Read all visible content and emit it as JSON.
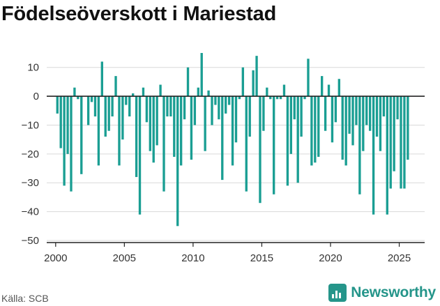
{
  "header": {
    "title": "Födelseöverskott i Mariestad"
  },
  "footer": {
    "source": "Källa: SCB",
    "brand_name": "Newsworthy"
  },
  "colors": {
    "bar": "#1a9e93",
    "zero_line": "#222222",
    "grid": "#d9d9d9",
    "brand": "#25958a"
  },
  "icons": {
    "brand_logo": "bar-chart-icon"
  },
  "chart_data": {
    "type": "bar",
    "title": "Födelseöverskott i Mariestad",
    "xlabel": "",
    "ylabel": "",
    "ylim": [
      -50,
      15
    ],
    "xlim": [
      1999.35,
      2026.85
    ],
    "y_ticks": [
      10,
      0,
      -10,
      -20,
      -30,
      -40,
      -50
    ],
    "x_ticks": [
      2000,
      2005,
      2010,
      2015,
      2020,
      2025
    ],
    "grid": true,
    "legend": "none",
    "frequency": "quarterly",
    "x": [
      2000.125,
      2000.375,
      2000.625,
      2000.875,
      2001.125,
      2001.375,
      2001.625,
      2001.875,
      2002.125,
      2002.375,
      2002.625,
      2002.875,
      2003.125,
      2003.375,
      2003.625,
      2003.875,
      2004.125,
      2004.375,
      2004.625,
      2004.875,
      2005.125,
      2005.375,
      2005.625,
      2005.875,
      2006.125,
      2006.375,
      2006.625,
      2006.875,
      2007.125,
      2007.375,
      2007.625,
      2007.875,
      2008.125,
      2008.375,
      2008.625,
      2008.875,
      2009.125,
      2009.375,
      2009.625,
      2009.875,
      2010.125,
      2010.375,
      2010.625,
      2010.875,
      2011.125,
      2011.375,
      2011.625,
      2011.875,
      2012.125,
      2012.375,
      2012.625,
      2012.875,
      2013.125,
      2013.375,
      2013.625,
      2013.875,
      2014.125,
      2014.375,
      2014.625,
      2014.875,
      2015.125,
      2015.375,
      2015.625,
      2015.875,
      2016.125,
      2016.375,
      2016.625,
      2016.875,
      2017.125,
      2017.375,
      2017.625,
      2017.875,
      2018.125,
      2018.375,
      2018.625,
      2018.875,
      2019.125,
      2019.375,
      2019.625,
      2019.875,
      2020.125,
      2020.375,
      2020.625,
      2020.875,
      2021.125,
      2021.375,
      2021.625,
      2021.875,
      2022.125,
      2022.375,
      2022.625,
      2022.875,
      2023.125,
      2023.375,
      2023.625,
      2023.875,
      2024.125,
      2024.375,
      2024.625,
      2024.875,
      2025.125,
      2025.375,
      2025.625
    ],
    "values": [
      -6,
      -18,
      -31,
      -20,
      -33,
      3,
      -1,
      -27,
      0,
      -10,
      -2,
      -7,
      -24,
      12,
      -14,
      -12,
      -7,
      7,
      -24,
      -15,
      -3,
      -7,
      1,
      -28,
      -41,
      3,
      -9,
      -19,
      -23,
      -17,
      4,
      -33,
      -7,
      -7,
      -21,
      -45,
      -24,
      -8,
      10,
      -22,
      -10,
      3,
      15,
      -19,
      2,
      -10,
      -3,
      -8,
      -29,
      -6,
      -3,
      -24,
      -16,
      -1,
      10,
      -33,
      -14,
      9,
      14,
      -37,
      -12,
      3,
      -1,
      -34,
      -1,
      -1,
      4,
      -31,
      -20,
      -8,
      -30,
      -14,
      -1,
      13,
      -24,
      -23,
      -21,
      7,
      -12,
      4,
      -16,
      -9,
      6,
      -22,
      -24,
      -13,
      -17,
      -10,
      -34,
      -19,
      -10,
      -12,
      -41,
      -14,
      -19,
      -7,
      -41,
      -32,
      -26,
      -8,
      -32,
      -32,
      -22
    ]
  }
}
